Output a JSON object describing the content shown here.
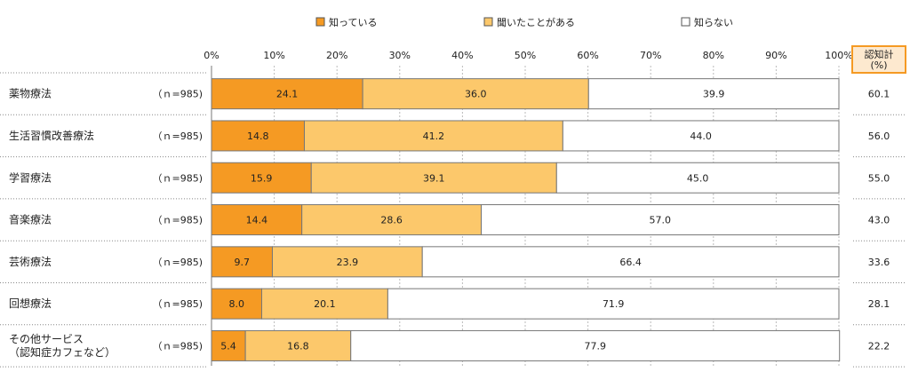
{
  "chart_data": {
    "type": "bar",
    "orientation": "horizontal",
    "stacked": true,
    "unit": "%",
    "xlim": [
      0,
      100
    ],
    "x_ticks": [
      "0%",
      "10%",
      "20%",
      "30%",
      "40%",
      "50%",
      "60%",
      "70%",
      "80%",
      "90%",
      "100%"
    ],
    "legend_position": "top",
    "legend": [
      "知っている",
      "聞いたことがある",
      "知らない"
    ],
    "series": [
      {
        "name": "知っている",
        "color": "#f59a23",
        "values": [
          24.1,
          14.8,
          15.9,
          14.4,
          9.7,
          8.0,
          5.4
        ]
      },
      {
        "name": "聞いたことがある",
        "color": "#fcc86b",
        "values": [
          36.0,
          41.2,
          39.1,
          28.6,
          23.9,
          20.1,
          16.8
        ]
      },
      {
        "name": "知らない",
        "color": "#ffffff",
        "values": [
          39.9,
          44.0,
          45.0,
          57.0,
          66.4,
          71.9,
          77.9
        ]
      }
    ],
    "value_labels": [
      [
        "24.1",
        "36.0",
        "39.9"
      ],
      [
        "14.8",
        "41.2",
        "44.0"
      ],
      [
        "15.9",
        "39.1",
        "45.0"
      ],
      [
        "14.4",
        "28.6",
        "57.0"
      ],
      [
        "9.7",
        "23.9",
        "66.4"
      ],
      [
        "8.0",
        "20.1",
        "71.9"
      ],
      [
        "5.4",
        "16.8",
        "77.9"
      ]
    ],
    "categories": [
      [
        "薬物療法"
      ],
      [
        "生活習慣改善療法"
      ],
      [
        "学習療法"
      ],
      [
        "音楽療法"
      ],
      [
        "芸術療法"
      ],
      [
        "回想療法"
      ],
      [
        "その他サービス",
        "（認知症カフェなど）"
      ]
    ],
    "n_labels": [
      "（ｎ=985)",
      "（ｎ=985)",
      "（ｎ=985)",
      "（ｎ=985)",
      "（ｎ=985)",
      "（ｎ=985)",
      "（ｎ=985)"
    ],
    "total_column": {
      "header": [
        "認知計",
        "(%)"
      ],
      "values": [
        "60.1",
        "56.0",
        "55.0",
        "43.0",
        "33.6",
        "28.1",
        "22.2"
      ]
    }
  }
}
